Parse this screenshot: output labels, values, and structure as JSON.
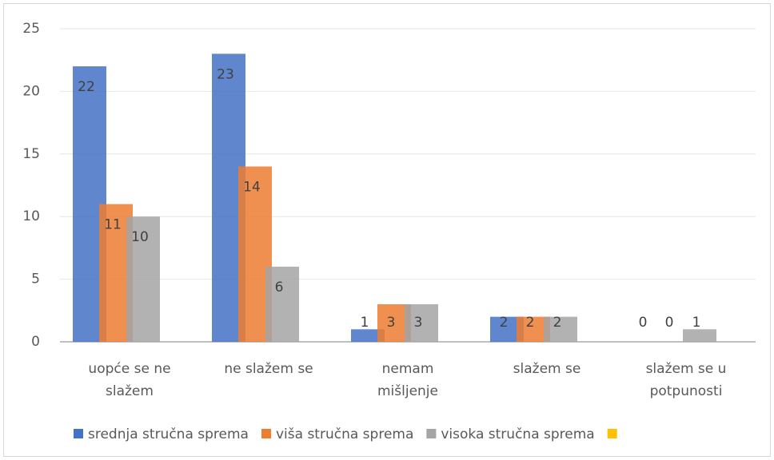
{
  "chart_data": {
    "type": "bar",
    "categories": [
      "uopće se ne slažem",
      "ne slažem se",
      "nemam mišljenje",
      "slažem se",
      "slažem se u potpunosti"
    ],
    "series": [
      {
        "name": "srednja stručna sprema",
        "color": "#4472c4",
        "values": [
          22,
          23,
          1,
          2,
          0
        ]
      },
      {
        "name": "viša stručna sprema",
        "color": "#ed7d31",
        "values": [
          11,
          14,
          3,
          2,
          0
        ]
      },
      {
        "name": "visoka stručna sprema",
        "color": "#a5a5a5",
        "values": [
          10,
          6,
          3,
          2,
          1
        ]
      },
      {
        "name": null,
        "color": "#ffc000",
        "values": [
          null,
          null,
          null,
          null,
          null
        ]
      }
    ],
    "ylim": [
      0,
      25
    ],
    "yticks": [
      0,
      5,
      10,
      15,
      20,
      25
    ],
    "grid": true,
    "legend": "bottom"
  }
}
